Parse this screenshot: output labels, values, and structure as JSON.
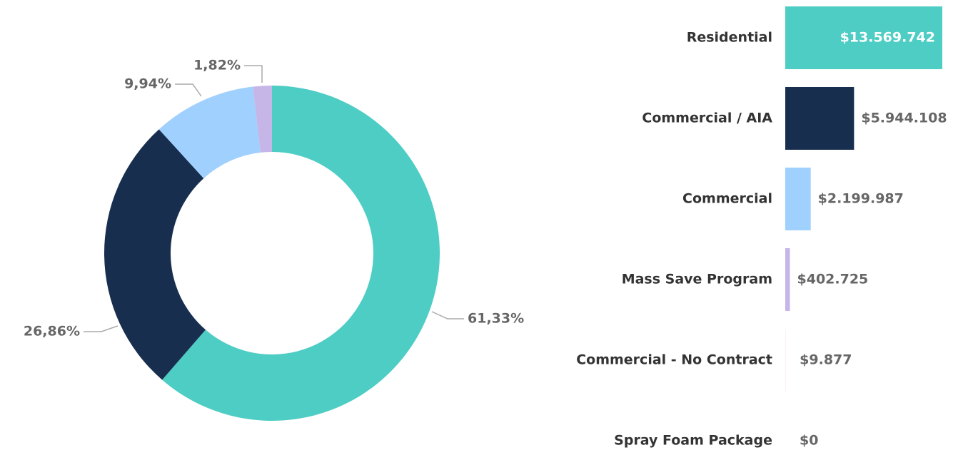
{
  "chart_data": [
    {
      "type": "donut",
      "values": [
        61.33,
        26.86,
        9.94,
        1.82
      ],
      "value_labels": [
        "61,33%",
        "26,86%",
        "9,94%",
        "1,82%"
      ],
      "colors": [
        "#4ecdc4",
        "#182e4f",
        "#a0d0fe",
        "#c6b6e8"
      ]
    },
    {
      "type": "hbar",
      "categories": [
        "Residential",
        "Commercial / AIA",
        "Commercial",
        "Mass Save Program",
        "Commercial - No Contract",
        "Spray Foam Package"
      ],
      "values": [
        13569742,
        5944108,
        2199987,
        402725,
        9877,
        0
      ],
      "value_labels": [
        "$13.569.742",
        "$5.944.108",
        "$2.199.987",
        "$402.725",
        "$9.877",
        "$0"
      ],
      "colors": [
        "#4ecdc4",
        "#182e4f",
        "#a0d0fe",
        "#c6b6e8",
        "#f0a8a8",
        null
      ]
    }
  ]
}
